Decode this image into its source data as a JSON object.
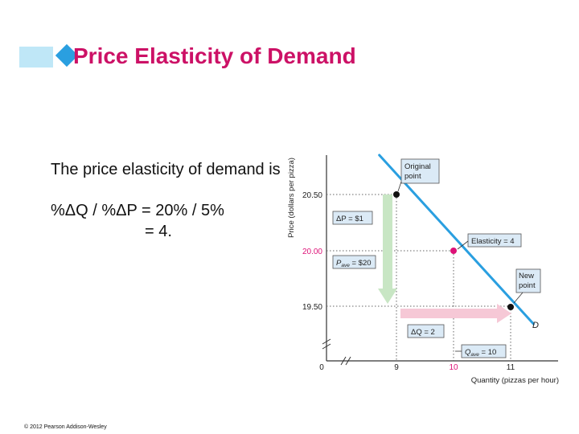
{
  "slide": {
    "title": "Price Elasticity of Demand",
    "body_line1": "The price elasticity of demand is",
    "formula": "%ΔQ / %ΔP  = 20% / 5%",
    "result": "= 4.",
    "copyright": "© 2012 Pearson Addison-Wesley"
  },
  "colors": {
    "title": "#cc1166",
    "accent_blue": "#2a9fe0",
    "light_blue": "#bfe7f7",
    "demand_line": "#2a9fe0",
    "price_arrow": "#c8e6c4",
    "quantity_arrow": "#f6c8d6",
    "midpoint": "#dd1177",
    "label_box": "#dbeaf6"
  },
  "chart_data": {
    "type": "line",
    "xlabel": "Quantity (pizzas per hour)",
    "ylabel": "Price (dollars per pizza)",
    "x_ticks": [
      "0",
      "9",
      "10",
      "11"
    ],
    "y_ticks": [
      "19.50",
      "20.00",
      "20.50"
    ],
    "xlim": [
      8.25,
      11.75
    ],
    "ylim": [
      19.25,
      20.85
    ],
    "series": [
      {
        "name": "D",
        "x": [
          8.7,
          11.4
        ],
        "y": [
          20.85,
          19.35
        ]
      }
    ],
    "points": [
      {
        "label": "Original point",
        "x": 9,
        "y": 20.5
      },
      {
        "label": "Elasticity = 4",
        "x": 10,
        "y": 20.0
      },
      {
        "label": "New point",
        "x": 11,
        "y": 19.5
      }
    ],
    "annotations": {
      "delta_p": "ΔP = $1",
      "p_ave": "P",
      "p_ave_sub": "ave",
      "p_ave_value": " = $20",
      "delta_q": "ΔQ = 2",
      "q_ave": "Q",
      "q_ave_sub": "ave",
      "q_ave_value": " = 10",
      "original_line1": "Original",
      "original_line2": "point",
      "new_line1": "New",
      "new_line2": "point",
      "elasticity": "Elasticity = 4",
      "demand_label": "D"
    }
  }
}
